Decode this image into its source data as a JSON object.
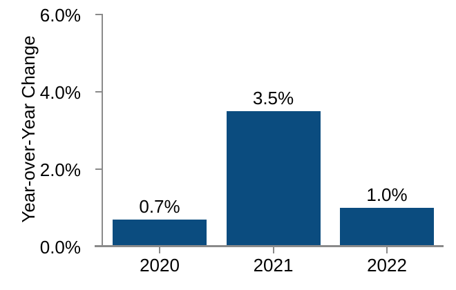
{
  "colors": {
    "bar": "#0B4C7F",
    "axis": "#8A8A8A",
    "text": "#000000",
    "background": "#FFFFFF"
  },
  "chart_data": {
    "type": "bar",
    "categories": [
      "2020",
      "2021",
      "2022"
    ],
    "values": [
      0.7,
      3.5,
      1.0
    ],
    "value_labels": [
      "0.7%",
      "3.5%",
      "1.0%"
    ],
    "title": "",
    "xlabel": "",
    "ylabel": "Year-over-Year Change",
    "ylim": [
      0,
      6
    ],
    "ytick_step": 2,
    "ytick_labels": [
      "0.0%",
      "2.0%",
      "4.0%",
      "6.0%"
    ],
    "grid": false,
    "legend_position": "none"
  }
}
